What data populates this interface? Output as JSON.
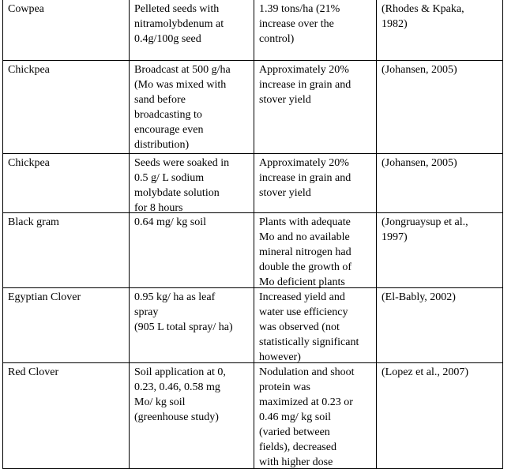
{
  "table": {
    "rows": [
      [
        [
          "Cowpea"
        ],
        [
          "Pelleted seeds with",
          "nitramolybdenum at",
          "0.4g/100g seed"
        ],
        [
          "1.39 tons/ha (21%",
          "increase over the",
          "control)"
        ],
        [
          "(Rhodes & Kpaka,",
          "1982)"
        ]
      ],
      [
        [
          "Chickpea"
        ],
        [
          "Broadcast at 500 g/ha",
          "(Mo was mixed with",
          "sand before",
          "broadcasting to",
          "encourage even",
          "distribution)"
        ],
        [
          "Approximately 20%",
          "increase in grain and",
          "stover yield"
        ],
        [
          "(Johansen, 2005)"
        ]
      ],
      [
        [
          "Chickpea"
        ],
        [
          "Seeds were soaked in",
          "0.5 g/ L sodium",
          "molybdate solution",
          "for 8 hours"
        ],
        [
          "Approximately 20%",
          "increase in grain and",
          "stover yield"
        ],
        [
          "(Johansen, 2005)"
        ]
      ],
      [
        [
          "Black gram"
        ],
        [
          "0.64 mg/ kg soil"
        ],
        [
          "Plants with adequate",
          "Mo and no available",
          "mineral nitrogen had",
          "double the growth of",
          "Mo deficient plants"
        ],
        [
          "(Jongruaysup et al.,",
          "1997)"
        ]
      ],
      [
        [
          "Egyptian Clover"
        ],
        [
          "0.95 kg/ ha as leaf",
          "spray",
          "(905 L total spray/ ha)"
        ],
        [
          "Increased yield and",
          "water use efficiency",
          "was observed (not",
          "statistically significant",
          "however)"
        ],
        [
          "(El-Bably, 2002)"
        ]
      ],
      [
        [
          "Red Clover"
        ],
        [
          "Soil application at 0,",
          "0.23, 0.46, 0.58 mg",
          "Mo/ kg soil",
          "(greenhouse study)"
        ],
        [
          "Nodulation and shoot",
          "protein was",
          "maximized at 0.23 or",
          "0.46 mg/ kg soil",
          "(varied between",
          "fields), decreased",
          "with higher dose"
        ],
        [
          "(Lopez et al., 2007)"
        ]
      ]
    ]
  }
}
